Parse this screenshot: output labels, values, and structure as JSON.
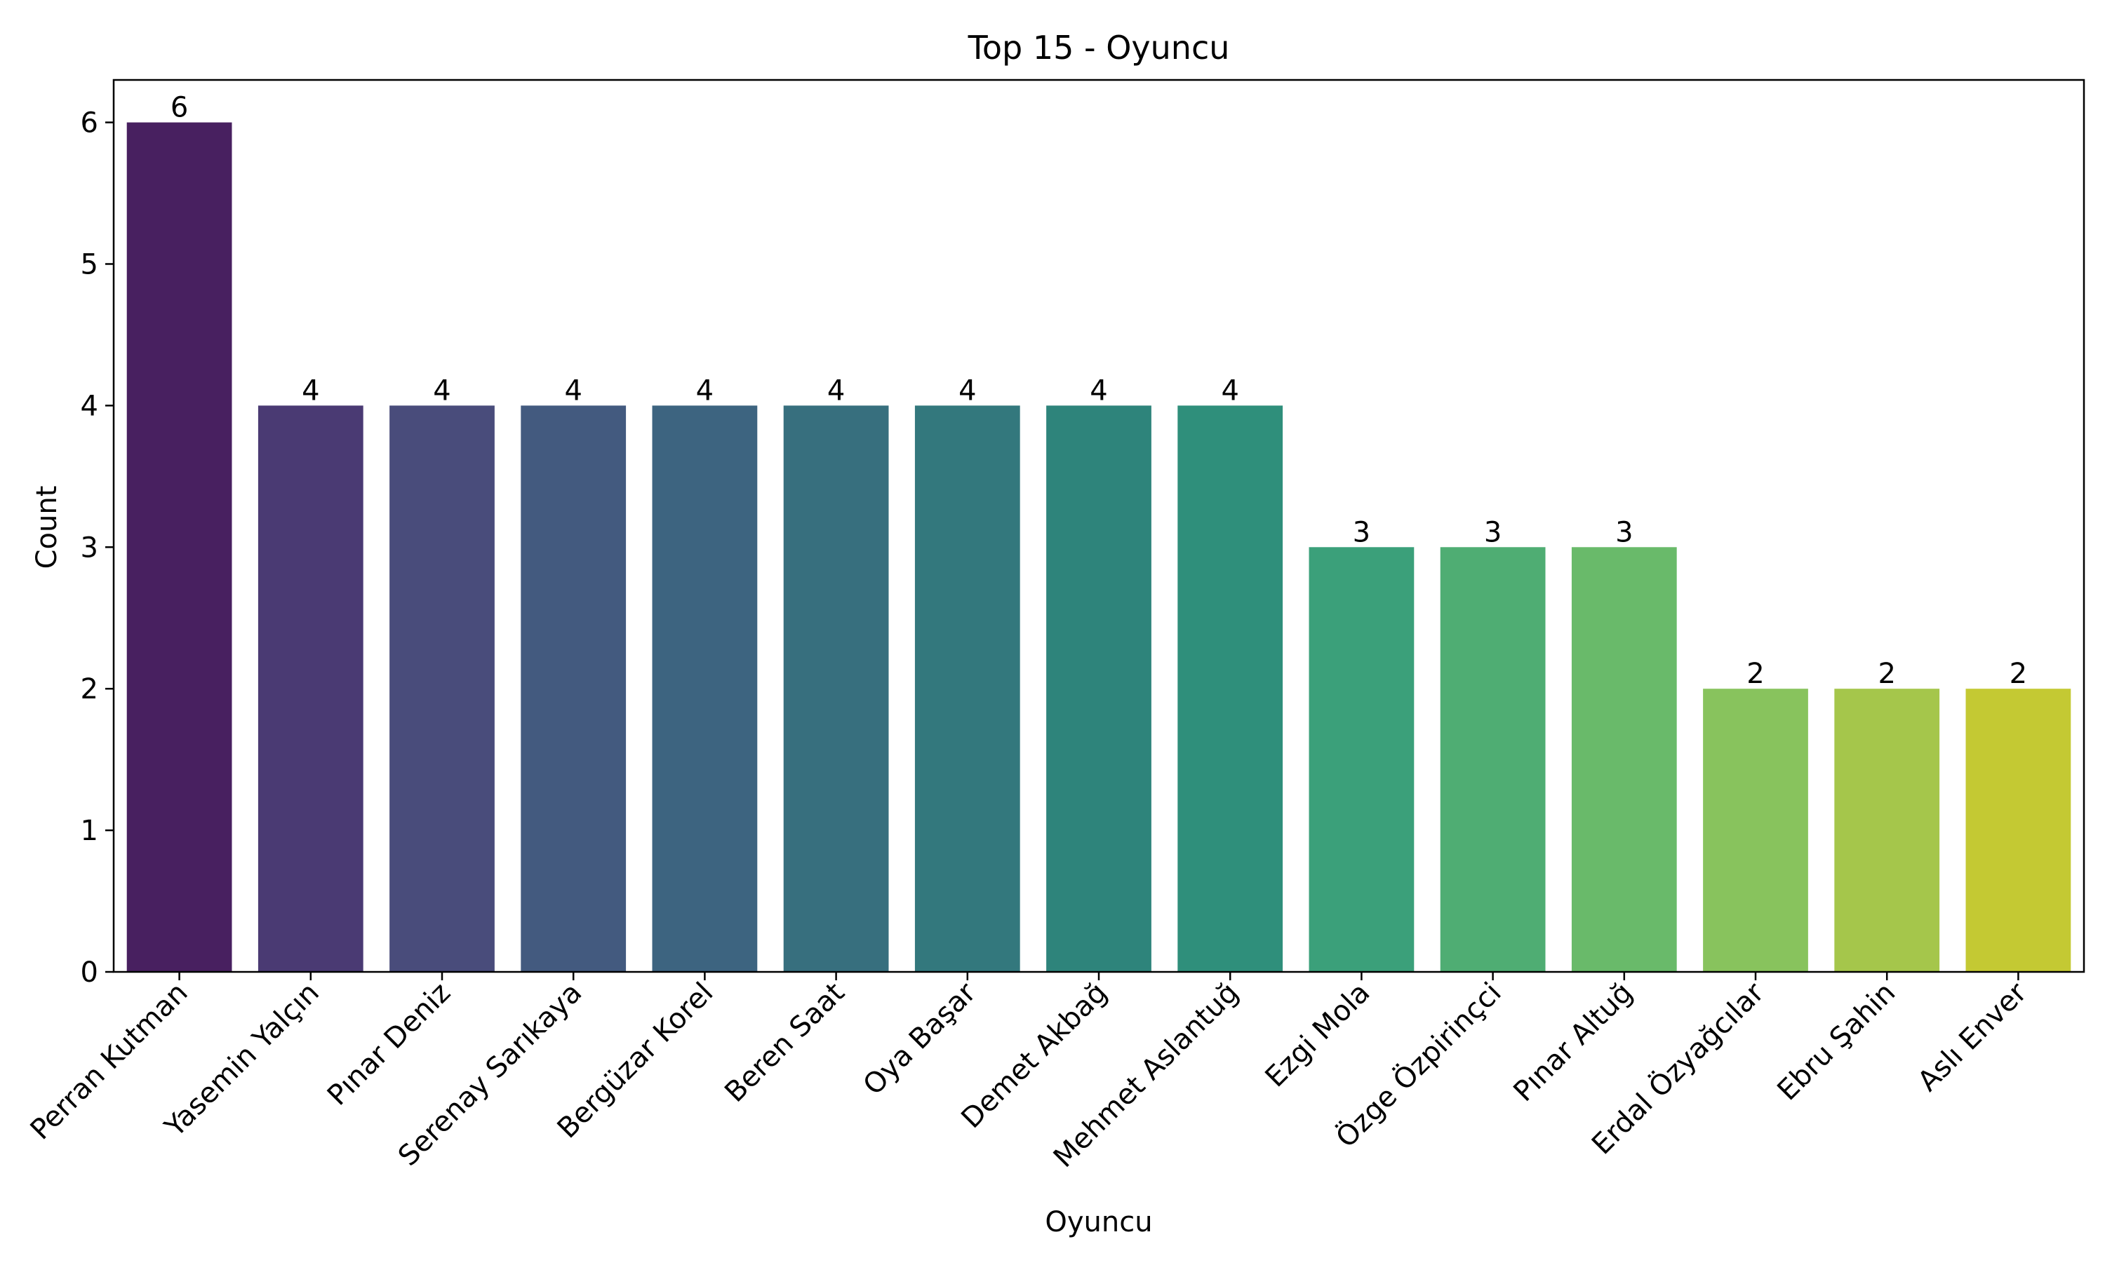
{
  "chart_data": {
    "type": "bar",
    "title": "Top 15 - Oyuncu",
    "xlabel": "Oyuncu",
    "ylabel": "Count",
    "ylim": [
      0,
      6.3
    ],
    "yticks": [
      0,
      1,
      2,
      3,
      4,
      5,
      6
    ],
    "categories": [
      "Perran Kutman",
      "Yasemin Yalçın",
      "Pınar Deniz",
      "Serenay Sarıkaya",
      "Bergüzar Korel",
      "Beren Saat",
      "Oya Başar",
      "Demet Akbağ",
      "Mehmet Aslantuğ",
      "Ezgi Mola",
      "Özge Özpirinçci",
      "Pınar Altuğ",
      "Erdal Özyağcılar",
      "Ebru Şahin",
      "Aslı Enver"
    ],
    "values": [
      6,
      4,
      4,
      4,
      4,
      4,
      4,
      4,
      4,
      3,
      3,
      3,
      2,
      2,
      2
    ],
    "data_labels": [
      "6",
      "4",
      "4",
      "4",
      "4",
      "4",
      "4",
      "4",
      "4",
      "3",
      "3",
      "3",
      "2",
      "2",
      "2"
    ],
    "colors": [
      "#482060",
      "#4a3a73",
      "#494c7b",
      "#435a7f",
      "#3d6480",
      "#376f7e",
      "#33787d",
      "#2e847b",
      "#2f8f7b",
      "#3ba07a",
      "#4fad73",
      "#69ba6a",
      "#88c35d",
      "#a5c64b",
      "#c4c933"
    ],
    "grid": false,
    "legend": "none"
  }
}
